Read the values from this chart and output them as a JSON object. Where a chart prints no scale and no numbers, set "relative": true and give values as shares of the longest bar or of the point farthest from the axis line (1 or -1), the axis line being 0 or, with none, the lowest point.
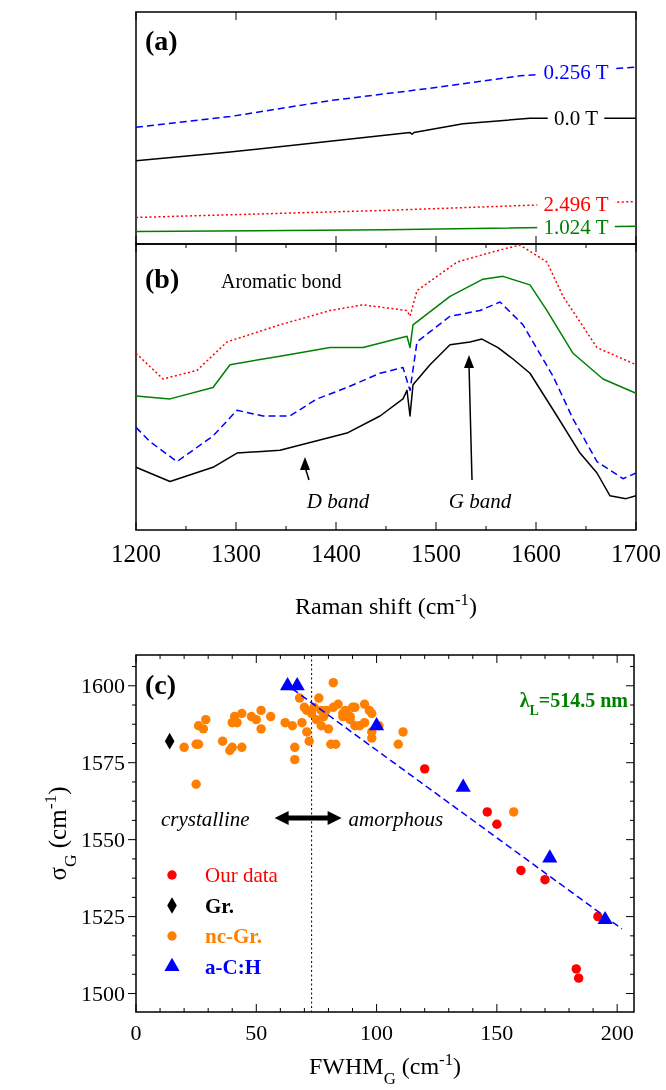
{
  "chart_data": [
    {
      "type": "line",
      "relative": true,
      "xlim": [
        1200,
        1700
      ],
      "xticks": [
        1200,
        1300,
        1400,
        1500,
        1600,
        1700
      ],
      "tick_labels": false,
      "annotations": [
        "(a)"
      ],
      "series": [
        {
          "name": "0.256 T",
          "color": "#0000ff",
          "line_style": "dashed",
          "x": [
            1200,
            1294,
            1394,
            1494,
            1584,
            1700
          ],
          "values": [
            0.66,
            0.72,
            0.81,
            0.88,
            0.95,
            1.0
          ]
        },
        {
          "name": "0.0 T",
          "color": "#000000",
          "line_style": "solid",
          "x": [
            1200,
            1294,
            1394,
            1474,
            1476,
            1478,
            1527,
            1594,
            1700
          ],
          "values": [
            0.47,
            0.52,
            0.58,
            0.63,
            0.62,
            0.63,
            0.68,
            0.71,
            0.71
          ]
        },
        {
          "name": "2.496 T",
          "color": "#ff0000",
          "line_style": "dotted",
          "x": [
            1200,
            1450,
            1700
          ],
          "values": [
            0.15,
            0.19,
            0.24
          ]
        },
        {
          "name": "1.024 T",
          "color": "#008000",
          "line_style": "solid",
          "x": [
            1200,
            1450,
            1700
          ],
          "values": [
            0.07,
            0.08,
            0.1
          ]
        }
      ]
    },
    {
      "type": "line",
      "relative": true,
      "xlim": [
        1200,
        1700
      ],
      "xticks": [
        1200,
        {
          "value": 1250,
          "label": null
        },
        1300,
        {
          "value": 1350,
          "label": null
        },
        1400,
        {
          "value": 1450,
          "label": null
        },
        1500,
        {
          "value": 1550,
          "label": null
        },
        1600,
        {
          "value": 1650,
          "label": null
        },
        1700
      ],
      "xlabel": "Raman shift (cm$^{-1}$)",
      "annotations": [
        "(b)",
        "Aromatic bond",
        "D band",
        "G band"
      ],
      "series": [
        {
          "color": "#0000ff",
          "line_style": "dashed",
          "x": [
            1200,
            1214,
            1241,
            1277,
            1301,
            1327,
            1354,
            1381,
            1411,
            1444,
            1467,
            1474,
            1481,
            1514,
            1544,
            1564,
            1587,
            1617,
            1637,
            1661,
            1687,
            1700
          ],
          "values": [
            0.36,
            0.31,
            0.24,
            0.33,
            0.42,
            0.4,
            0.4,
            0.46,
            0.5,
            0.55,
            0.57,
            0.49,
            0.66,
            0.75,
            0.77,
            0.8,
            0.72,
            0.54,
            0.39,
            0.24,
            0.18,
            0.2
          ]
        },
        {
          "color": "#000000",
          "line_style": "solid",
          "x": [
            1200,
            1234,
            1277,
            1301,
            1344,
            1377,
            1411,
            1444,
            1467,
            1471,
            1474,
            1477,
            1494,
            1514,
            1534,
            1546,
            1562,
            1577,
            1594,
            1621,
            1644,
            1661,
            1674,
            1690,
            1700
          ],
          "values": [
            0.22,
            0.17,
            0.22,
            0.27,
            0.28,
            0.31,
            0.34,
            0.4,
            0.46,
            0.49,
            0.4,
            0.51,
            0.58,
            0.65,
            0.66,
            0.67,
            0.64,
            0.6,
            0.55,
            0.4,
            0.27,
            0.2,
            0.12,
            0.11,
            0.12
          ]
        },
        {
          "color": "#ff0000",
          "line_style": "dotted",
          "x": [
            1200,
            1227,
            1261,
            1291,
            1344,
            1394,
            1427,
            1471,
            1474,
            1481,
            1521,
            1561,
            1584,
            1611,
            1627,
            1661,
            1700
          ],
          "values": [
            0.62,
            0.53,
            0.56,
            0.66,
            0.72,
            0.77,
            0.79,
            0.77,
            0.75,
            0.84,
            0.94,
            0.98,
            1.0,
            0.94,
            0.82,
            0.64,
            0.58
          ]
        },
        {
          "color": "#008000",
          "line_style": "solid",
          "x": [
            1200,
            1234,
            1277,
            1294,
            1344,
            1394,
            1427,
            1471,
            1474,
            1477,
            1514,
            1547,
            1567,
            1594,
            1611,
            1637,
            1667,
            1700
          ],
          "values": [
            0.47,
            0.46,
            0.5,
            0.58,
            0.61,
            0.64,
            0.64,
            0.68,
            0.64,
            0.72,
            0.82,
            0.88,
            0.89,
            0.86,
            0.77,
            0.62,
            0.53,
            0.48
          ]
        }
      ]
    },
    {
      "type": "scatter",
      "xlim": [
        0,
        207
      ],
      "ylim": [
        1494,
        1610
      ],
      "xticks": [
        0,
        {
          "value": 10,
          "label": null
        },
        {
          "value": 20,
          "label": null
        },
        {
          "value": 30,
          "label": null
        },
        {
          "value": 40,
          "label": null
        },
        50,
        {
          "value": 60,
          "label": null
        },
        {
          "value": 70,
          "label": null
        },
        {
          "value": 80,
          "label": null
        },
        {
          "value": 90,
          "label": null
        },
        100,
        {
          "value": 110,
          "label": null
        },
        {
          "value": 120,
          "label": null
        },
        {
          "value": 130,
          "label": null
        },
        {
          "value": 140,
          "label": null
        },
        150,
        {
          "value": 160,
          "label": null
        },
        {
          "value": 170,
          "label": null
        },
        {
          "value": 180,
          "label": null
        },
        {
          "value": 190,
          "label": null
        },
        200
      ],
      "yticks": [
        1500,
        {
          "value": 1506.25,
          "label": null
        },
        {
          "value": 1512.5,
          "label": null
        },
        {
          "value": 1518.75,
          "label": null
        },
        1525,
        {
          "value": 1531.25,
          "label": null
        },
        {
          "value": 1537.5,
          "label": null
        },
        {
          "value": 1543.75,
          "label": null
        },
        1550,
        {
          "value": 1556.25,
          "label": null
        },
        {
          "value": 1562.5,
          "label": null
        },
        {
          "value": 1568.75,
          "label": null
        },
        1575,
        {
          "value": 1581.25,
          "label": null
        },
        {
          "value": 1587.5,
          "label": null
        },
        {
          "value": 1593.75,
          "label": null
        },
        1600,
        {
          "value": 1606.25,
          "label": null
        }
      ],
      "xlabel": "FWHM$_{G}$ (cm$^{-1}$)",
      "ylabel": "σ$_{G}$ (cm$^{-1}$)",
      "legend": "bottom left",
      "annotations": [
        "(c)",
        "λ$_{L}$=514.5 nm",
        "crystalline",
        "amorphous"
      ],
      "ref_lines": [
        {
          "axis": "x",
          "value": 73,
          "color": "#000000",
          "line_style": "dotted"
        }
      ],
      "series": [
        {
          "name": "Our data",
          "color": "#ff0000",
          "marker": "circle",
          "x": [
            120,
            146,
            150,
            160,
            170,
            192,
            183,
            184
          ],
          "values": [
            1573,
            1559,
            1555,
            1540,
            1537,
            1525,
            1508,
            1505
          ]
        },
        {
          "name": "Gr.",
          "color": "#000000",
          "marker": "diamond",
          "x": [
            14
          ],
          "values": [
            1582
          ]
        },
        {
          "name": "nc-Gr.",
          "color": "#ff8000",
          "marker": "circle",
          "x": [
            26,
            29,
            28,
            20,
            25,
            26,
            25,
            36,
            39,
            40,
            44,
            41,
            42,
            40,
            44,
            48,
            50,
            52,
            52,
            56,
            62,
            65,
            66,
            66,
            69,
            71,
            72,
            68,
            70,
            71,
            76,
            74,
            73,
            75,
            78,
            77,
            79,
            82,
            80,
            81,
            83,
            77,
            84,
            82,
            86,
            86,
            89,
            90,
            91,
            87,
            89,
            91,
            93,
            95,
            97,
            98,
            98,
            98,
            95,
            101,
            111,
            109,
            157
          ],
          "values": [
            1587,
            1589,
            1586,
            1580,
            1581,
            1581,
            1568,
            1582,
            1579,
            1580,
            1580,
            1590,
            1588,
            1588,
            1591,
            1590,
            1589,
            1586,
            1592,
            1590,
            1588,
            1587,
            1580,
            1576,
            1588,
            1585,
            1582,
            1596,
            1593,
            1592,
            1596,
            1593,
            1591,
            1589,
            1590,
            1592,
            1592,
            1601,
            1586,
            1581,
            1581,
            1587,
            1594,
            1593,
            1591,
            1590,
            1589,
            1593,
            1593,
            1592,
            1590,
            1587,
            1587,
            1594,
            1592,
            1591,
            1585,
            1583,
            1588,
            1587,
            1585,
            1581,
            1559
          ]
        },
        {
          "name": "a-C:H",
          "color": "#0000ff",
          "marker": "triangle",
          "x": [
            63,
            67,
            100,
            136,
            172,
            195
          ],
          "values": [
            1600,
            1600,
            1587,
            1567,
            1544,
            1524
          ]
        },
        {
          "type": "line",
          "color": "#0000ff",
          "line_style": "dashed",
          "x": [
            65,
            202
          ],
          "values": [
            1599,
            1521
          ]
        }
      ]
    }
  ]
}
